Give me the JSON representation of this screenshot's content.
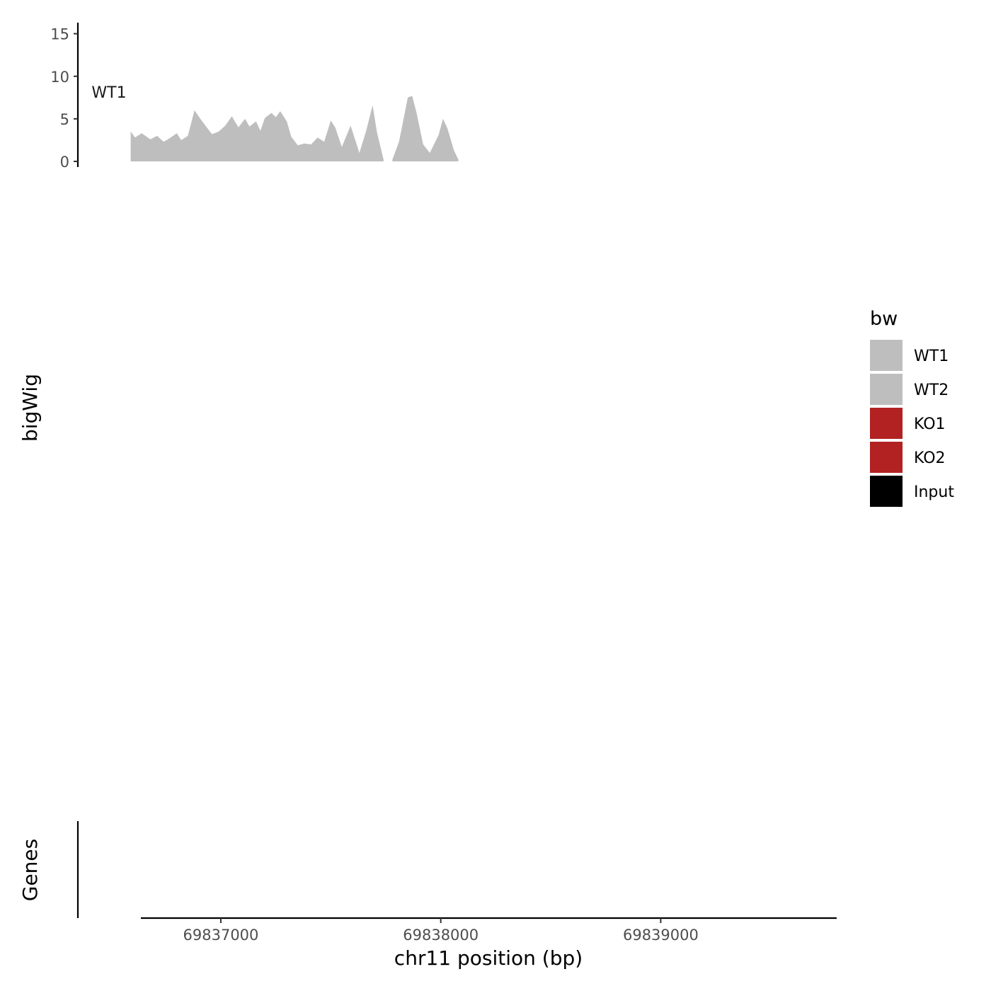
{
  "chart_data": {
    "type": "area",
    "xlabel": "chr11 position (bp)",
    "ylabel": "bigWig",
    "genes_label": "Genes",
    "xlim": [
      69836350,
      69839800
    ],
    "x_ticks": [
      69837000,
      69838000,
      69839000
    ],
    "x_tick_labels": [
      "69837000",
      "69838000",
      "69839000"
    ],
    "ylim": [
      0,
      16.3
    ],
    "y_ticks": [
      0,
      5,
      10,
      15
    ],
    "y_tick_labels": [
      "0",
      "5",
      "10",
      "15"
    ],
    "legend": {
      "title": "bw",
      "placement": "right",
      "entries": [
        {
          "label": "WT1",
          "color": "#bebebe"
        },
        {
          "label": "WT2",
          "color": "#bebebe"
        },
        {
          "label": "KO1",
          "color": "#b22222"
        },
        {
          "label": "KO2",
          "color": "#b22222"
        },
        {
          "label": "Input",
          "color": "#000000"
        }
      ]
    },
    "series": [
      {
        "name": "WT1",
        "color": "#bebebe",
        "segments": [
          [
            [
              69836590,
              3.5
            ],
            [
              69836610,
              2.8
            ],
            [
              69836640,
              3.3
            ],
            [
              69836680,
              2.6
            ],
            [
              69836710,
              3.0
            ],
            [
              69836740,
              2.3
            ],
            [
              69836760,
              2.6
            ],
            [
              69836800,
              3.3
            ],
            [
              69836820,
              2.5
            ],
            [
              69836850,
              3.0
            ],
            [
              69836880,
              6.0
            ],
            [
              69836910,
              4.9
            ],
            [
              69836930,
              4.2
            ],
            [
              69836960,
              3.2
            ],
            [
              69836990,
              3.5
            ],
            [
              69837020,
              4.2
            ],
            [
              69837050,
              5.3
            ],
            [
              69837080,
              4.0
            ],
            [
              69837110,
              5.0
            ],
            [
              69837130,
              4.1
            ],
            [
              69837160,
              4.7
            ],
            [
              69837180,
              3.6
            ],
            [
              69837200,
              5.1
            ],
            [
              69837230,
              5.7
            ],
            [
              69837250,
              5.2
            ],
            [
              69837270,
              5.9
            ],
            [
              69837300,
              4.7
            ],
            [
              69837320,
              2.9
            ],
            [
              69837350,
              1.9
            ],
            [
              69837380,
              2.1
            ],
            [
              69837410,
              2.0
            ],
            [
              69837440,
              2.8
            ],
            [
              69837470,
              2.3
            ],
            [
              69837500,
              4.8
            ],
            [
              69837520,
              4.0
            ],
            [
              69837550,
              1.7
            ],
            [
              69837590,
              4.2
            ],
            [
              69837630,
              1.0
            ],
            [
              69837660,
              3.5
            ],
            [
              69837690,
              6.6
            ],
            [
              69837710,
              3.4
            ],
            [
              69837740,
              0.2
            ]
          ],
          [
            [
              69837780,
              0.2
            ],
            [
              69837810,
              2.3
            ],
            [
              69837830,
              4.9
            ],
            [
              69837850,
              7.5
            ],
            [
              69837870,
              7.7
            ],
            [
              69837890,
              5.7
            ],
            [
              69837920,
              2.0
            ],
            [
              69837950,
              1.0
            ],
            [
              69837990,
              3.1
            ],
            [
              69838010,
              5.0
            ],
            [
              69838030,
              3.9
            ],
            [
              69838060,
              1.3
            ],
            [
              69838080,
              0.2
            ]
          ]
        ]
      }
    ]
  }
}
